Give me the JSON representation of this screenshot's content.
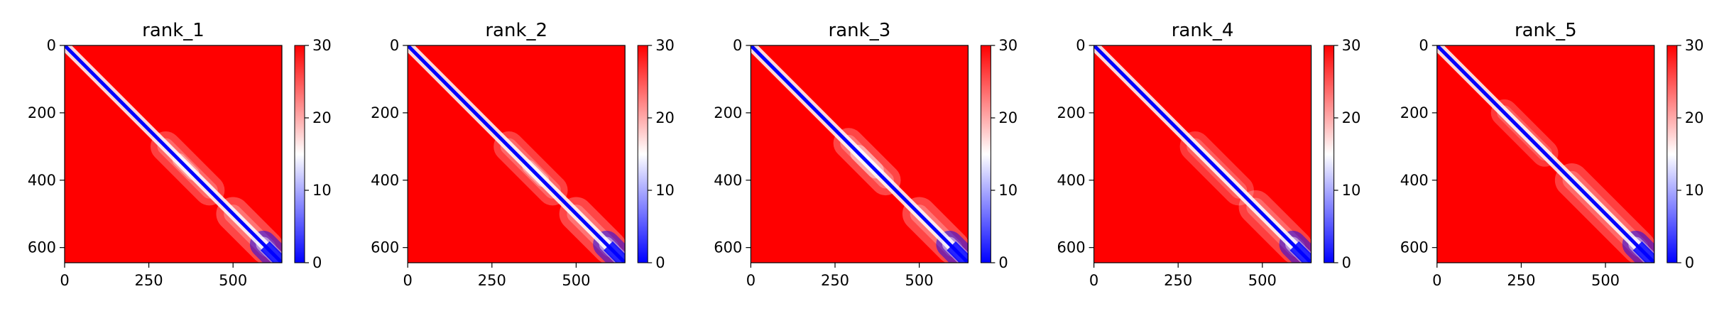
{
  "figure": {
    "colormap": {
      "name": "bwr",
      "low": "#0000ff",
      "mid": "#ffffff",
      "high": "#ff0000"
    }
  },
  "chart_data": [
    {
      "type": "heatmap",
      "title": "rank_1",
      "x_range": [
        0,
        645
      ],
      "y_range": [
        0,
        645
      ],
      "y_inverted": true,
      "xticks": [
        0,
        250,
        500
      ],
      "yticks": [
        0,
        200,
        400,
        600
      ],
      "colorbar": {
        "range": [
          0,
          30
        ],
        "ticks": [
          0,
          10,
          20,
          30
        ]
      },
      "blue_regions": [
        {
          "start": 0,
          "end": 645,
          "width": 20,
          "strength": 0.95
        },
        {
          "start": 300,
          "end": 430,
          "width": 90,
          "strength": 0.45
        },
        {
          "start": 340,
          "end": 380,
          "width": 40,
          "strength": 0.6
        },
        {
          "start": 500,
          "end": 600,
          "width": 100,
          "strength": 0.5
        },
        {
          "start": 590,
          "end": 645,
          "width": 80,
          "strength": 0.9
        }
      ]
    },
    {
      "type": "heatmap",
      "title": "rank_2",
      "x_range": [
        0,
        645
      ],
      "y_range": [
        0,
        645
      ],
      "y_inverted": true,
      "xticks": [
        0,
        250,
        500
      ],
      "yticks": [
        0,
        200,
        400,
        600
      ],
      "colorbar": {
        "range": [
          0,
          30
        ],
        "ticks": [
          0,
          10,
          20,
          30
        ]
      },
      "blue_regions": [
        {
          "start": 0,
          "end": 645,
          "width": 20,
          "strength": 0.95
        },
        {
          "start": 300,
          "end": 430,
          "width": 90,
          "strength": 0.45
        },
        {
          "start": 360,
          "end": 400,
          "width": 40,
          "strength": 0.6
        },
        {
          "start": 500,
          "end": 600,
          "width": 100,
          "strength": 0.5
        },
        {
          "start": 590,
          "end": 645,
          "width": 80,
          "strength": 0.9
        }
      ]
    },
    {
      "type": "heatmap",
      "title": "rank_3",
      "x_range": [
        0,
        645
      ],
      "y_range": [
        0,
        645
      ],
      "y_inverted": true,
      "xticks": [
        0,
        250,
        500
      ],
      "yticks": [
        0,
        200,
        400,
        600
      ],
      "colorbar": {
        "range": [
          0,
          30
        ],
        "ticks": [
          0,
          10,
          20,
          30
        ]
      },
      "blue_regions": [
        {
          "start": 0,
          "end": 645,
          "width": 20,
          "strength": 0.95
        },
        {
          "start": 290,
          "end": 400,
          "width": 90,
          "strength": 0.5
        },
        {
          "start": 320,
          "end": 370,
          "width": 50,
          "strength": 0.7
        },
        {
          "start": 500,
          "end": 600,
          "width": 100,
          "strength": 0.5
        },
        {
          "start": 590,
          "end": 645,
          "width": 80,
          "strength": 0.9
        }
      ]
    },
    {
      "type": "heatmap",
      "title": "rank_4",
      "x_range": [
        0,
        645
      ],
      "y_range": [
        0,
        645
      ],
      "y_inverted": true,
      "xticks": [
        0,
        250,
        500
      ],
      "yticks": [
        0,
        200,
        400,
        600
      ],
      "colorbar": {
        "range": [
          0,
          30
        ],
        "ticks": [
          0,
          10,
          20,
          30
        ]
      },
      "blue_regions": [
        {
          "start": 0,
          "end": 645,
          "width": 20,
          "strength": 0.95
        },
        {
          "start": 300,
          "end": 430,
          "width": 90,
          "strength": 0.4
        },
        {
          "start": 480,
          "end": 600,
          "width": 100,
          "strength": 0.45
        },
        {
          "start": 590,
          "end": 645,
          "width": 80,
          "strength": 0.9
        }
      ]
    },
    {
      "type": "heatmap",
      "title": "rank_5",
      "x_range": [
        0,
        645
      ],
      "y_range": [
        0,
        645
      ],
      "y_inverted": true,
      "xticks": [
        0,
        250,
        500
      ],
      "yticks": [
        0,
        200,
        400,
        600
      ],
      "colorbar": {
        "range": [
          0,
          30
        ],
        "ticks": [
          0,
          10,
          20,
          30
        ]
      },
      "blue_regions": [
        {
          "start": 0,
          "end": 645,
          "width": 20,
          "strength": 0.95
        },
        {
          "start": 200,
          "end": 320,
          "width": 80,
          "strength": 0.4
        },
        {
          "start": 400,
          "end": 600,
          "width": 100,
          "strength": 0.45
        },
        {
          "start": 590,
          "end": 645,
          "width": 80,
          "strength": 0.9
        }
      ]
    }
  ]
}
